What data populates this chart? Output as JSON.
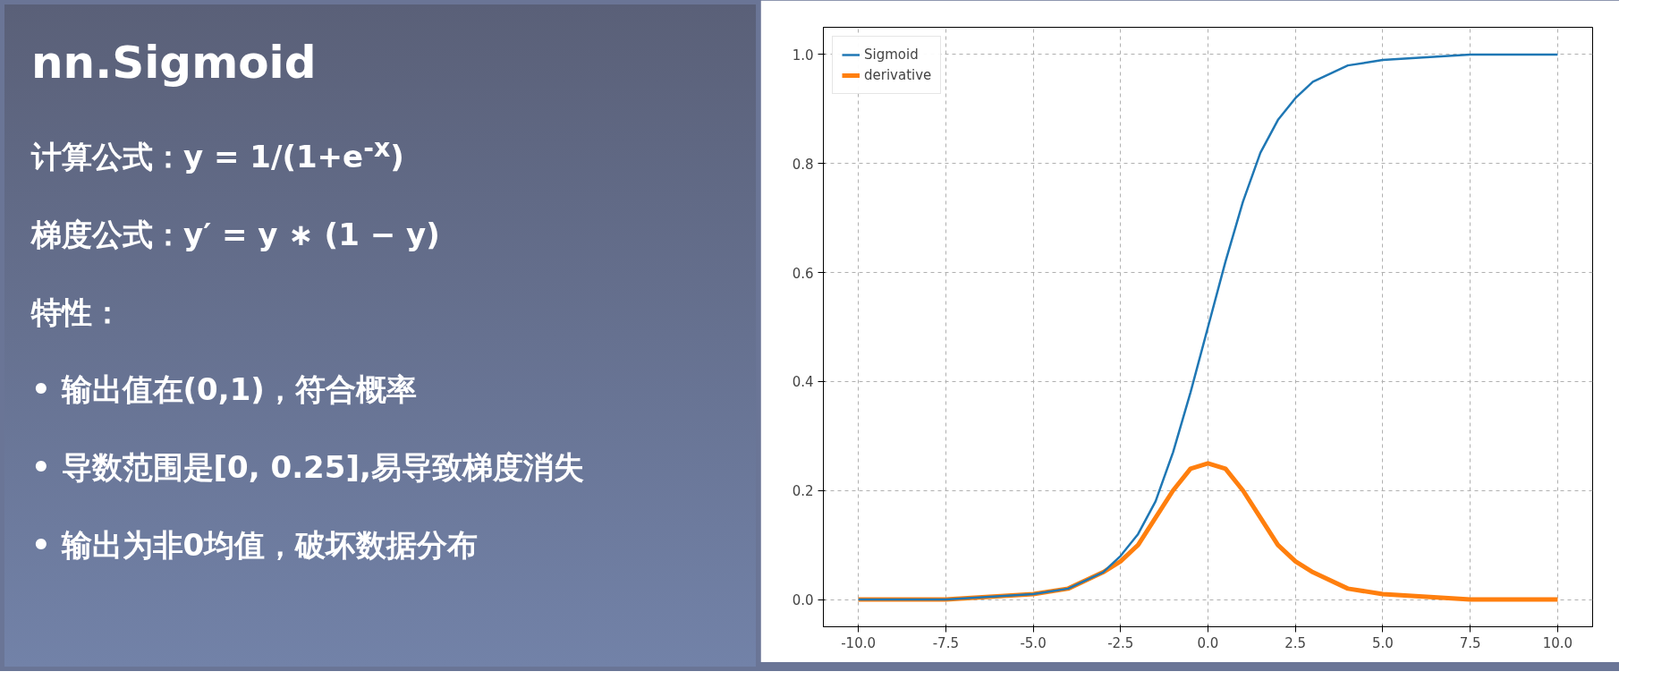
{
  "chart_data": {
    "type": "line",
    "title": "nn.Sigmoid",
    "annotations": [
      "计算公式：y = 1/(1+e$^{-x}$)",
      "梯度公式：y′ = y ∗ (1 − y)",
      "特性：",
      "• 输出值在(0,1)，符合概率",
      "• 导数范围是[0, 0.25],易导致梯度消失",
      "• 输出为非0均值，破坏数据分布"
    ],
    "x": [
      -10,
      -7.5,
      -5,
      -4,
      -3,
      -2.5,
      -2,
      -1.5,
      -1,
      -0.5,
      0,
      0.5,
      1,
      1.5,
      2,
      2.5,
      3,
      4,
      5,
      7.5,
      10
    ],
    "series": [
      {
        "name": "Sigmoid",
        "color": "#1f77b4",
        "values": [
          0.0,
          0.0,
          0.01,
          0.02,
          0.05,
          0.08,
          0.12,
          0.18,
          0.27,
          0.38,
          0.5,
          0.62,
          0.73,
          0.82,
          0.88,
          0.92,
          0.95,
          0.98,
          0.99,
          1.0,
          1.0
        ]
      },
      {
        "name": "derivative",
        "color": "#ff7f0e",
        "values": [
          0.0,
          0.0,
          0.01,
          0.02,
          0.05,
          0.07,
          0.1,
          0.15,
          0.2,
          0.24,
          0.25,
          0.24,
          0.2,
          0.15,
          0.1,
          0.07,
          0.05,
          0.02,
          0.01,
          0.0,
          0.0
        ]
      }
    ],
    "xlim": [
      -11,
      11
    ],
    "xticks": [
      {
        "value": -10,
        "label": "-10.0"
      },
      -7.5,
      {
        "value": -5,
        "label": "-5.0"
      },
      -2.5,
      {
        "value": 0,
        "label": "0.0"
      },
      2.5,
      {
        "value": 5,
        "label": "5.0"
      },
      7.5,
      {
        "value": 10,
        "label": "10.0"
      }
    ],
    "ylim": [
      -0.05,
      1.05
    ],
    "yticks": [
      {
        "value": 0,
        "label": "0.0"
      },
      0.2,
      0.4,
      0.6,
      0.8,
      {
        "value": 1,
        "label": "1.0"
      }
    ],
    "grid": true,
    "legend": "top left",
    "line_style": "solid"
  }
}
